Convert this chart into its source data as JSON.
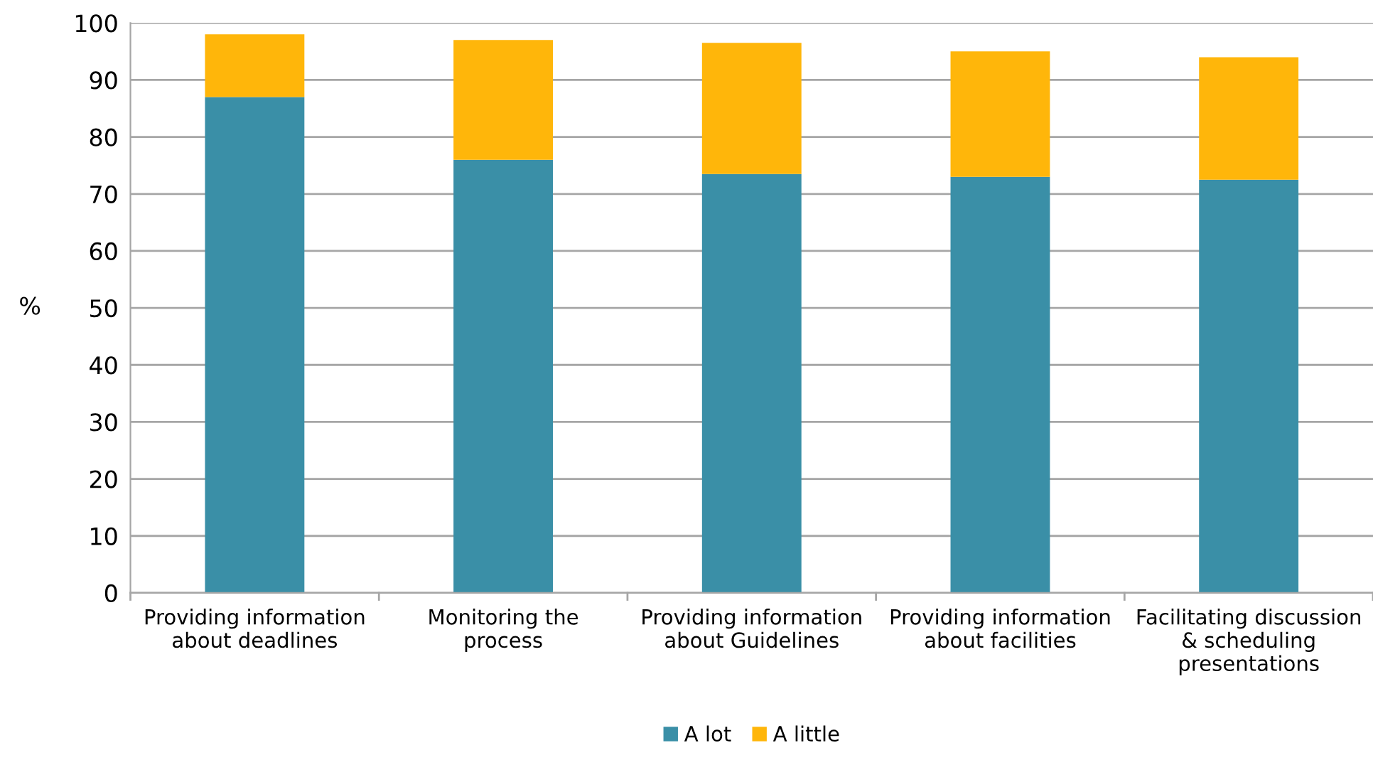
{
  "chart_data": {
    "type": "bar",
    "stacked": true,
    "ylabel": "%",
    "categories": [
      "Providing information\nabout deadlines",
      "Monitoring the\nprocess",
      "Providing information\nabout Guidelines",
      "Providing information\nabout facilities",
      "Facilitating discussion\n& scheduling\npresentations"
    ],
    "series": [
      {
        "name": "A lot",
        "color": "#3a8fa7",
        "values": [
          87,
          76,
          73.5,
          73,
          72.5
        ]
      },
      {
        "name": "A little",
        "color": "#ffb60a",
        "values": [
          11,
          21,
          23,
          22,
          21.5
        ]
      }
    ],
    "ylim": [
      0,
      100
    ],
    "yticks": [
      0,
      10,
      20,
      30,
      40,
      50,
      60,
      70,
      80,
      90,
      100
    ],
    "grid": "y",
    "legend": "bottom"
  }
}
